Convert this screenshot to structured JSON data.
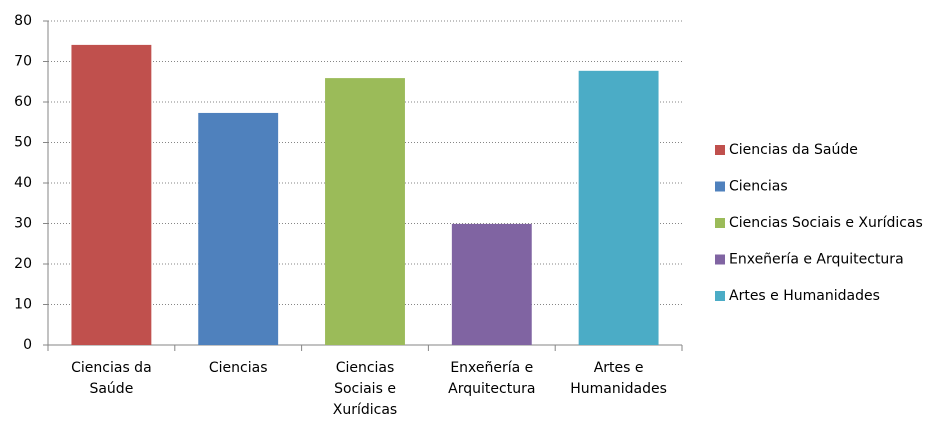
{
  "chart_data": {
    "type": "bar",
    "categories": [
      "Ciencias da Saúde",
      "Ciencias",
      "Ciencias Sociais e Xurídicas",
      "Enxeñería e Arquitectura",
      "Artes e Humanidades"
    ],
    "values": [
      74.1,
      57.3,
      65.9,
      29.9,
      67.7
    ],
    "colors": [
      "#c0504d",
      "#4f81bd",
      "#9bbb59",
      "#8064a2",
      "#4bacc6"
    ],
    "ylim": [
      0,
      80
    ],
    "yticks": [
      0,
      10,
      20,
      30,
      40,
      50,
      60,
      70,
      80
    ],
    "grid": true,
    "legend": "right"
  }
}
